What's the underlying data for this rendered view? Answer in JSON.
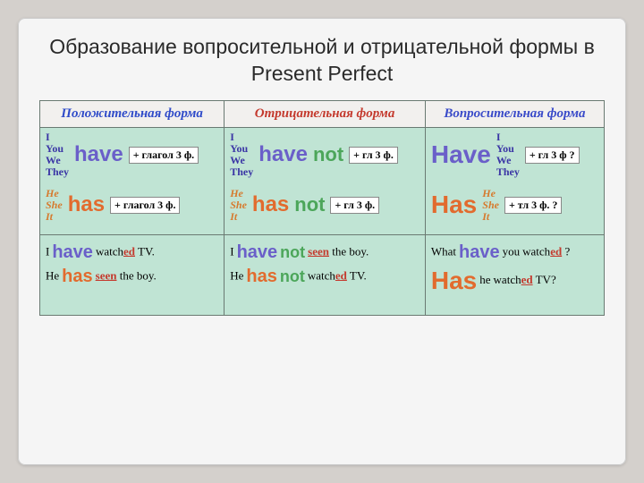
{
  "title": "Образование вопросительной и отрицательной формы в Present Perfect",
  "headers": {
    "positive": "Положительная форма",
    "negative": "Отрицательная форма",
    "question": "Вопросительная форма"
  },
  "pronouns_plural": [
    "I",
    "You",
    "We",
    "They"
  ],
  "pronouns_singular": [
    "He",
    "She",
    "It"
  ],
  "verbs": {
    "have": "have",
    "has": "has",
    "not": "not",
    "Have": "Have",
    "Has": "Has"
  },
  "boxes": {
    "verb3_long": "+ глагол 3 ф.",
    "verb3_short": "+ гл 3 ф.",
    "verb3_q": "+ гл 3 ф ?",
    "verb3_q2": "+ тл 3 ф. ?"
  },
  "examples": {
    "pos1_pre": "I",
    "pos1_verb": "watch",
    "pos1_ed": "ed",
    "pos1_post": " TV.",
    "pos2_pre": "He",
    "pos2_verb": "seen",
    "pos2_post": " the boy.",
    "neg1_pre": "I",
    "neg1_verb": "seen",
    "neg1_post": " the boy.",
    "neg2_pre": "He",
    "neg2_verb": "watch",
    "neg2_ed": "ed",
    "neg2_post": " TV.",
    "q1_pre": "What",
    "q1_mid": "you",
    "q1_verb": "watch",
    "q1_ed": "ed",
    "q1_post": " ?",
    "q2_mid": "he",
    "q2_verb": "watch",
    "q2_ed": "ed",
    "q2_post": " TV?"
  }
}
